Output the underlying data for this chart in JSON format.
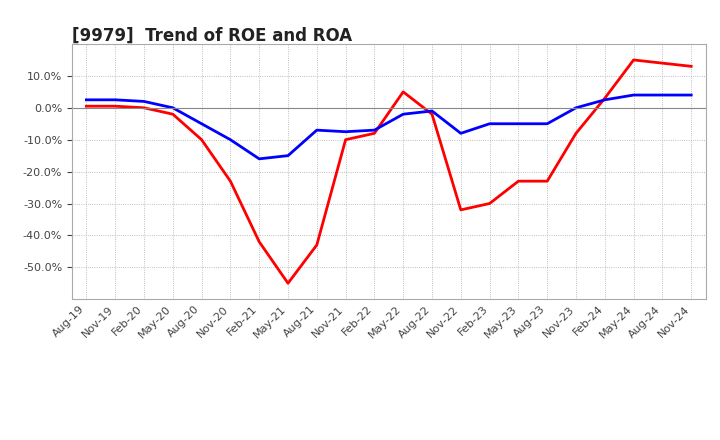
{
  "title": "[9979]  Trend of ROE and ROA",
  "x_labels": [
    "Aug-19",
    "Nov-19",
    "Feb-20",
    "May-20",
    "Aug-20",
    "Nov-20",
    "Feb-21",
    "May-21",
    "Aug-21",
    "Nov-21",
    "Feb-22",
    "May-22",
    "Aug-22",
    "Nov-22",
    "Feb-23",
    "May-23",
    "Aug-23",
    "Nov-23",
    "Feb-24",
    "May-24",
    "Aug-24",
    "Nov-24"
  ],
  "roe": [
    0.5,
    0.5,
    0.0,
    -2.0,
    -10.0,
    -23.0,
    -42.0,
    -55.0,
    -43.0,
    -10.0,
    -8.0,
    5.0,
    -2.0,
    -32.0,
    -30.0,
    -23.0,
    -23.0,
    -8.0,
    3.0,
    15.0,
    14.0,
    13.0
  ],
  "roa": [
    2.5,
    2.5,
    2.0,
    0.0,
    -5.0,
    -10.0,
    -16.0,
    -15.0,
    -7.0,
    -7.5,
    -7.0,
    -2.0,
    -1.0,
    -8.0,
    -5.0,
    -5.0,
    -5.0,
    0.0,
    2.5,
    4.0,
    4.0,
    4.0
  ],
  "roe_color": "#ff0000",
  "roa_color": "#0000ff",
  "background_color": "#ffffff",
  "grid_color": "#aaaaaa",
  "ylim": [
    -60,
    20
  ],
  "yticks": [
    10.0,
    0.0,
    -10.0,
    -20.0,
    -30.0,
    -40.0,
    -50.0
  ],
  "line_width": 2.0,
  "title_fontsize": 12,
  "tick_fontsize": 8,
  "legend_fontsize": 10
}
